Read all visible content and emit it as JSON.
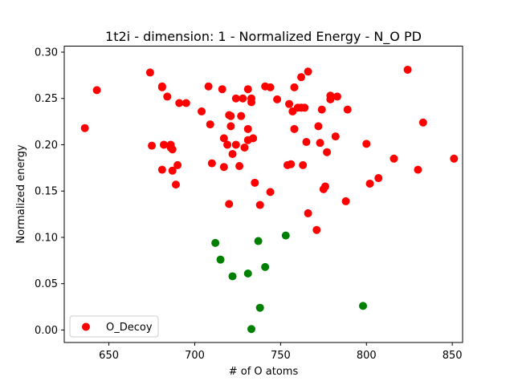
{
  "chart_data": {
    "type": "scatter",
    "title": "1t2i - dimension: 1 - Normalized Energy - N_O PD",
    "xlabel": "# of O atoms",
    "ylabel": "Normalized energy",
    "xlim": [
      624,
      856
    ],
    "ylim": [
      -0.0135,
      0.3065
    ],
    "xticks": [
      650,
      700,
      750,
      800,
      850
    ],
    "xtick_labels": [
      "650",
      "700",
      "750",
      "800",
      "850"
    ],
    "yticks": [
      0.0,
      0.05,
      0.1,
      0.15,
      0.2,
      0.25,
      0.3
    ],
    "ytick_labels": [
      "0.00",
      "0.05",
      "0.10",
      "0.15",
      "0.20",
      "0.25",
      "0.30"
    ],
    "grid": false,
    "legend_position": "lower-left",
    "series": [
      {
        "name": "O_Decoy",
        "color": "#ff0000",
        "in_legend": true,
        "points": [
          [
            636,
            0.218
          ],
          [
            643,
            0.259
          ],
          [
            674,
            0.278
          ],
          [
            675,
            0.199
          ],
          [
            681,
            0.262
          ],
          [
            681,
            0.263
          ],
          [
            681,
            0.173
          ],
          [
            682,
            0.2
          ],
          [
            684,
            0.252
          ],
          [
            686,
            0.2
          ],
          [
            686,
            0.197
          ],
          [
            687,
            0.195
          ],
          [
            687,
            0.172
          ],
          [
            689,
            0.157
          ],
          [
            690,
            0.178
          ],
          [
            691,
            0.245
          ],
          [
            695,
            0.245
          ],
          [
            704,
            0.236
          ],
          [
            708,
            0.263
          ],
          [
            709,
            0.222
          ],
          [
            710,
            0.18
          ],
          [
            716,
            0.26
          ],
          [
            717,
            0.207
          ],
          [
            717,
            0.176
          ],
          [
            719,
            0.2
          ],
          [
            720,
            0.136
          ],
          [
            720,
            0.232
          ],
          [
            721,
            0.22
          ],
          [
            721,
            0.231
          ],
          [
            722,
            0.19
          ],
          [
            724,
            0.25
          ],
          [
            724,
            0.2
          ],
          [
            726,
            0.177
          ],
          [
            727,
            0.231
          ],
          [
            728,
            0.25
          ],
          [
            729,
            0.197
          ],
          [
            731,
            0.26
          ],
          [
            731,
            0.217
          ],
          [
            731,
            0.205
          ],
          [
            733,
            0.25
          ],
          [
            733,
            0.246
          ],
          [
            734,
            0.207
          ],
          [
            735,
            0.159
          ],
          [
            738,
            0.135
          ],
          [
            741,
            0.263
          ],
          [
            744,
            0.262
          ],
          [
            744,
            0.149
          ],
          [
            748,
            0.249
          ],
          [
            754,
            0.178
          ],
          [
            755,
            0.244
          ],
          [
            756,
            0.179
          ],
          [
            757,
            0.236
          ],
          [
            758,
            0.262
          ],
          [
            758,
            0.217
          ],
          [
            760,
            0.24
          ],
          [
            762,
            0.24
          ],
          [
            762,
            0.273
          ],
          [
            763,
            0.178
          ],
          [
            764,
            0.24
          ],
          [
            765,
            0.203
          ],
          [
            766,
            0.279
          ],
          [
            766,
            0.126
          ],
          [
            771,
            0.108
          ],
          [
            772,
            0.22
          ],
          [
            773,
            0.202
          ],
          [
            774,
            0.238
          ],
          [
            775,
            0.152
          ],
          [
            776,
            0.155
          ],
          [
            777,
            0.192
          ],
          [
            779,
            0.253
          ],
          [
            779,
            0.249
          ],
          [
            782,
            0.209
          ],
          [
            783,
            0.252
          ],
          [
            788,
            0.139
          ],
          [
            789,
            0.238
          ],
          [
            800,
            0.201
          ],
          [
            802,
            0.158
          ],
          [
            807,
            0.164
          ],
          [
            816,
            0.185
          ],
          [
            824,
            0.281
          ],
          [
            830,
            0.173
          ],
          [
            833,
            0.224
          ],
          [
            851,
            0.185
          ]
        ]
      },
      {
        "name": "",
        "color": "#008000",
        "in_legend": false,
        "points": [
          [
            712,
            0.094
          ],
          [
            715,
            0.076
          ],
          [
            722,
            0.058
          ],
          [
            731,
            0.061
          ],
          [
            733,
            0.001
          ],
          [
            737,
            0.096
          ],
          [
            738,
            0.024
          ],
          [
            741,
            0.068
          ],
          [
            753,
            0.102
          ],
          [
            798,
            0.026
          ]
        ]
      }
    ]
  }
}
